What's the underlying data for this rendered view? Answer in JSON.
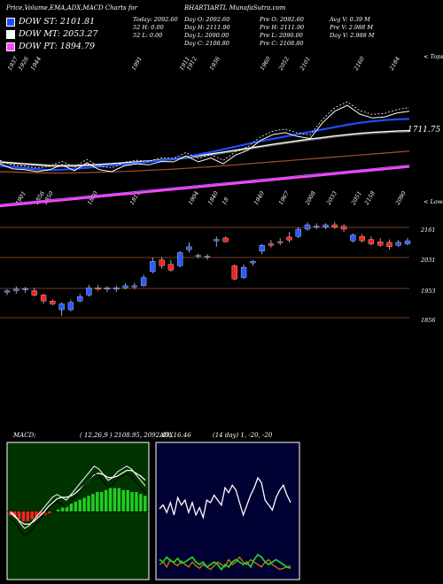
{
  "header": {
    "title_left": "Price,Volume,EMA,ADX,MACD Charts for",
    "title_right": "BHARTIARTL MunafaSutra.com"
  },
  "legend": [
    {
      "label": "DOW ST: 2101.81",
      "color": "#1e4fff"
    },
    {
      "label": "DOW MT: 2053.27",
      "color": "#ffffff"
    },
    {
      "label": "DOW PT: 1894.79",
      "color": "#ff44ff"
    }
  ],
  "stats": [
    [
      "Today: 2092.60",
      "Day O: 2092.60",
      "Pre  O: 2092.60",
      "Avg V: 0.39 M"
    ],
    [
      "52  H: 0.00",
      "Day H: 2111.90",
      "Pre  H: 2111.90",
      "Pre  V: 2.988  M"
    ],
    [
      "52  L: 0.00",
      "Day L: 2090.00",
      "Pre  L: 2090.00",
      "Day V: 2.988  M"
    ],
    [
      "",
      "Day C: 2108.80",
      "Pre  C: 2108.80",
      ""
    ]
  ],
  "colors": {
    "background": "#000000",
    "st_line": "#1e4fff",
    "mt_line": "#ffffff",
    "pt_line": "#ff44ff",
    "brown": "#a0522d",
    "up": "#2a5bff",
    "down": "#ff2222",
    "macd_hist": "#22cc22",
    "adx_orange": "#e08000",
    "adx_green": "#22cc22"
  },
  "chart_data": [
    {
      "type": "line",
      "title": "EMA",
      "label_top": "< Tops",
      "label_bottom": "< Lows",
      "last_value_label": "1711.75",
      "top_labels": [
        "1937",
        "1926",
        "1944",
        "1991",
        "1911",
        "1912",
        "1936",
        "1960",
        "2052",
        "2101",
        "2160",
        "2184"
      ],
      "bottom_labels": [
        "1901",
        "1856",
        "1850",
        "1830",
        "1811",
        "1904",
        "1840",
        "18",
        "1940",
        "1967",
        "2008",
        "2033",
        "2051",
        "2158",
        "2090"
      ],
      "series": [
        {
          "name": "ST",
          "values": [
            1720,
            1714,
            1708,
            1702,
            1698,
            1700,
            1704,
            1710,
            1716,
            1722,
            1728,
            1734,
            1740,
            1748,
            1756,
            1766,
            1778,
            1790,
            1804,
            1818,
            1832,
            1846,
            1858,
            1870,
            1882,
            1894,
            1906,
            1918,
            1930,
            1940,
            1948,
            1954,
            1958,
            1960
          ]
        },
        {
          "name": "MT",
          "values": [
            1740,
            1735,
            1730,
            1726,
            1722,
            1721,
            1722,
            1724,
            1727,
            1731,
            1735,
            1740,
            1745,
            1751,
            1757,
            1764,
            1772,
            1781,
            1790,
            1800,
            1810,
            1820,
            1830,
            1839,
            1848,
            1857,
            1865,
            1873,
            1880,
            1886,
            1891,
            1895,
            1898,
            1900
          ]
        },
        {
          "name": "PT",
          "values": [
            1600,
            1603,
            1606,
            1609,
            1612,
            1615,
            1618,
            1621,
            1624,
            1627,
            1630,
            1633,
            1636,
            1639,
            1642,
            1645,
            1648,
            1651,
            1654,
            1657,
            1660,
            1663,
            1666,
            1669,
            1672,
            1675,
            1678,
            1681,
            1684,
            1687,
            1690,
            1693,
            1696,
            1699
          ]
        },
        {
          "name": "Brown",
          "values": [
            1690,
            1688,
            1686,
            1684,
            1683,
            1683,
            1684,
            1685,
            1687,
            1689,
            1691,
            1694,
            1697,
            1700,
            1703,
            1707,
            1711,
            1715,
            1720,
            1725,
            1730,
            1735,
            1740,
            1745,
            1750,
            1755,
            1760,
            1765,
            1770,
            1775,
            1780,
            1785,
            1790,
            1795
          ]
        },
        {
          "name": "Price",
          "values": [
            1730,
            1705,
            1700,
            1690,
            1700,
            1725,
            1695,
            1735,
            1700,
            1690,
            1720,
            1730,
            1725,
            1742,
            1740,
            1770,
            1740,
            1760,
            1730,
            1775,
            1800,
            1850,
            1880,
            1890,
            1870,
            1860,
            1940,
            2000,
            2030,
            1985,
            1965,
            1970,
            1990,
            2000
          ]
        }
      ]
    },
    {
      "type": "candlestick",
      "title": "Price",
      "levels": [
        "2161",
        "2031",
        "1953",
        "1856"
      ],
      "candles": [
        {
          "o": 1940,
          "h": 1950,
          "l": 1930,
          "c": 1945
        },
        {
          "o": 1945,
          "h": 1960,
          "l": 1935,
          "c": 1950
        },
        {
          "o": 1948,
          "h": 1958,
          "l": 1938,
          "c": 1952
        },
        {
          "o": 1945,
          "h": 1955,
          "l": 1925,
          "c": 1930
        },
        {
          "o": 1930,
          "h": 1935,
          "l": 1900,
          "c": 1910
        },
        {
          "o": 1910,
          "h": 1915,
          "l": 1895,
          "c": 1900
        },
        {
          "o": 1880,
          "h": 1905,
          "l": 1860,
          "c": 1900
        },
        {
          "o": 1880,
          "h": 1915,
          "l": 1875,
          "c": 1905
        },
        {
          "o": 1910,
          "h": 1935,
          "l": 1905,
          "c": 1925
        },
        {
          "o": 1930,
          "h": 1965,
          "l": 1925,
          "c": 1955
        },
        {
          "o": 1955,
          "h": 1965,
          "l": 1945,
          "c": 1950
        },
        {
          "o": 1950,
          "h": 1960,
          "l": 1940,
          "c": 1955
        },
        {
          "o": 1950,
          "h": 1962,
          "l": 1940,
          "c": 1955
        },
        {
          "o": 1955,
          "h": 1970,
          "l": 1950,
          "c": 1962
        },
        {
          "o": 1958,
          "h": 1972,
          "l": 1950,
          "c": 1962
        },
        {
          "o": 1962,
          "h": 2000,
          "l": 1958,
          "c": 1990
        },
        {
          "o": 2010,
          "h": 2058,
          "l": 2005,
          "c": 2045
        },
        {
          "o": 2050,
          "h": 2060,
          "l": 2020,
          "c": 2030
        },
        {
          "o": 2035,
          "h": 2050,
          "l": 2010,
          "c": 2015
        },
        {
          "o": 2030,
          "h": 2080,
          "l": 2025,
          "c": 2075
        },
        {
          "o": 2085,
          "h": 2110,
          "l": 2075,
          "c": 2095
        },
        {
          "o": 2065,
          "h": 2072,
          "l": 2055,
          "c": 2065
        },
        {
          "o": 2062,
          "h": 2070,
          "l": 2050,
          "c": 2062
        },
        {
          "o": 2115,
          "h": 2130,
          "l": 2095,
          "c": 2120
        },
        {
          "o": 2125,
          "h": 2130,
          "l": 2110,
          "c": 2112
        },
        {
          "o": 2030,
          "h": 2035,
          "l": 1980,
          "c": 1985
        },
        {
          "o": 1990,
          "h": 2035,
          "l": 1985,
          "c": 2025
        },
        {
          "o": 2040,
          "h": 2050,
          "l": 2030,
          "c": 2045
        },
        {
          "o": 2080,
          "h": 2105,
          "l": 2070,
          "c": 2100
        },
        {
          "o": 2105,
          "h": 2118,
          "l": 2092,
          "c": 2100
        },
        {
          "o": 2112,
          "h": 2125,
          "l": 2100,
          "c": 2110
        },
        {
          "o": 2128,
          "h": 2145,
          "l": 2110,
          "c": 2118
        },
        {
          "o": 2130,
          "h": 2162,
          "l": 2125,
          "c": 2155
        },
        {
          "o": 2155,
          "h": 2178,
          "l": 2150,
          "c": 2170
        },
        {
          "o": 2165,
          "h": 2175,
          "l": 2155,
          "c": 2165
        },
        {
          "o": 2162,
          "h": 2175,
          "l": 2155,
          "c": 2170
        },
        {
          "o": 2170,
          "h": 2180,
          "l": 2155,
          "c": 2162
        },
        {
          "o": 2165,
          "h": 2172,
          "l": 2145,
          "c": 2155
        },
        {
          "o": 2115,
          "h": 2140,
          "l": 2110,
          "c": 2135
        },
        {
          "o": 2130,
          "h": 2138,
          "l": 2110,
          "c": 2115
        },
        {
          "o": 2120,
          "h": 2130,
          "l": 2100,
          "c": 2105
        },
        {
          "o": 2112,
          "h": 2125,
          "l": 2095,
          "c": 2100
        },
        {
          "o": 2110,
          "h": 2120,
          "l": 2085,
          "c": 2095
        },
        {
          "o": 2100,
          "h": 2118,
          "l": 2095,
          "c": 2110
        },
        {
          "o": 2105,
          "h": 2125,
          "l": 2100,
          "c": 2115
        }
      ]
    },
    {
      "type": "bar",
      "title": "MACD",
      "label": "MACD:",
      "params": "( 12,26,9 ) 2108.95, 2092.49, 16.46",
      "histogram": [
        -2,
        -3,
        -4,
        -5,
        -5,
        -4,
        -3,
        -2,
        -2,
        -1,
        0,
        1,
        2,
        3,
        4,
        5,
        6,
        7,
        8,
        9,
        10,
        10,
        11,
        12,
        12,
        12,
        11,
        11,
        10,
        10,
        9,
        8
      ],
      "macd": [
        0,
        -3,
        -8,
        -12,
        -10,
        -6,
        -2,
        2,
        6,
        10,
        12,
        10,
        8,
        12,
        16,
        20,
        24,
        28,
        32,
        30,
        26,
        22,
        24,
        28,
        30,
        32,
        30,
        26,
        22,
        18
      ],
      "signal": [
        -1,
        -4,
        -7,
        -9,
        -9,
        -7,
        -4,
        -1,
        3,
        6,
        9,
        10,
        10,
        11,
        13,
        16,
        19,
        23,
        26,
        27,
        26,
        24,
        24,
        25,
        27,
        29,
        29,
        27,
        25,
        22
      ]
    },
    {
      "type": "line",
      "title": "ADX",
      "label": "ADX",
      "params": "(14 day) 1, -20, -20",
      "series": [
        {
          "name": "ADX",
          "values": [
            55,
            58,
            52,
            60,
            50,
            64,
            58,
            62,
            52,
            60,
            50,
            56,
            48,
            62,
            60,
            66,
            62,
            58,
            72,
            68,
            74,
            70,
            60,
            50,
            58,
            66,
            72,
            80,
            76,
            62,
            58,
            54,
            64,
            70,
            74,
            66,
            60
          ]
        },
        {
          "name": "+DI",
          "values": [
            10,
            12,
            8,
            14,
            11,
            9,
            13,
            10,
            8,
            12,
            9,
            7,
            10,
            8,
            6,
            9,
            12,
            10,
            8,
            14,
            10,
            12,
            16,
            12,
            10,
            14,
            12,
            10,
            8,
            12,
            14,
            10,
            8,
            6,
            7,
            8,
            9
          ]
        },
        {
          "name": "-DI",
          "values": [
            14,
            12,
            16,
            13,
            12,
            15,
            11,
            12,
            14,
            16,
            12,
            10,
            12,
            8,
            10,
            12,
            10,
            6,
            10,
            8,
            12,
            14,
            12,
            10,
            12,
            8,
            14,
            18,
            16,
            12,
            10,
            12,
            14,
            12,
            10,
            8,
            7
          ]
        }
      ]
    }
  ]
}
